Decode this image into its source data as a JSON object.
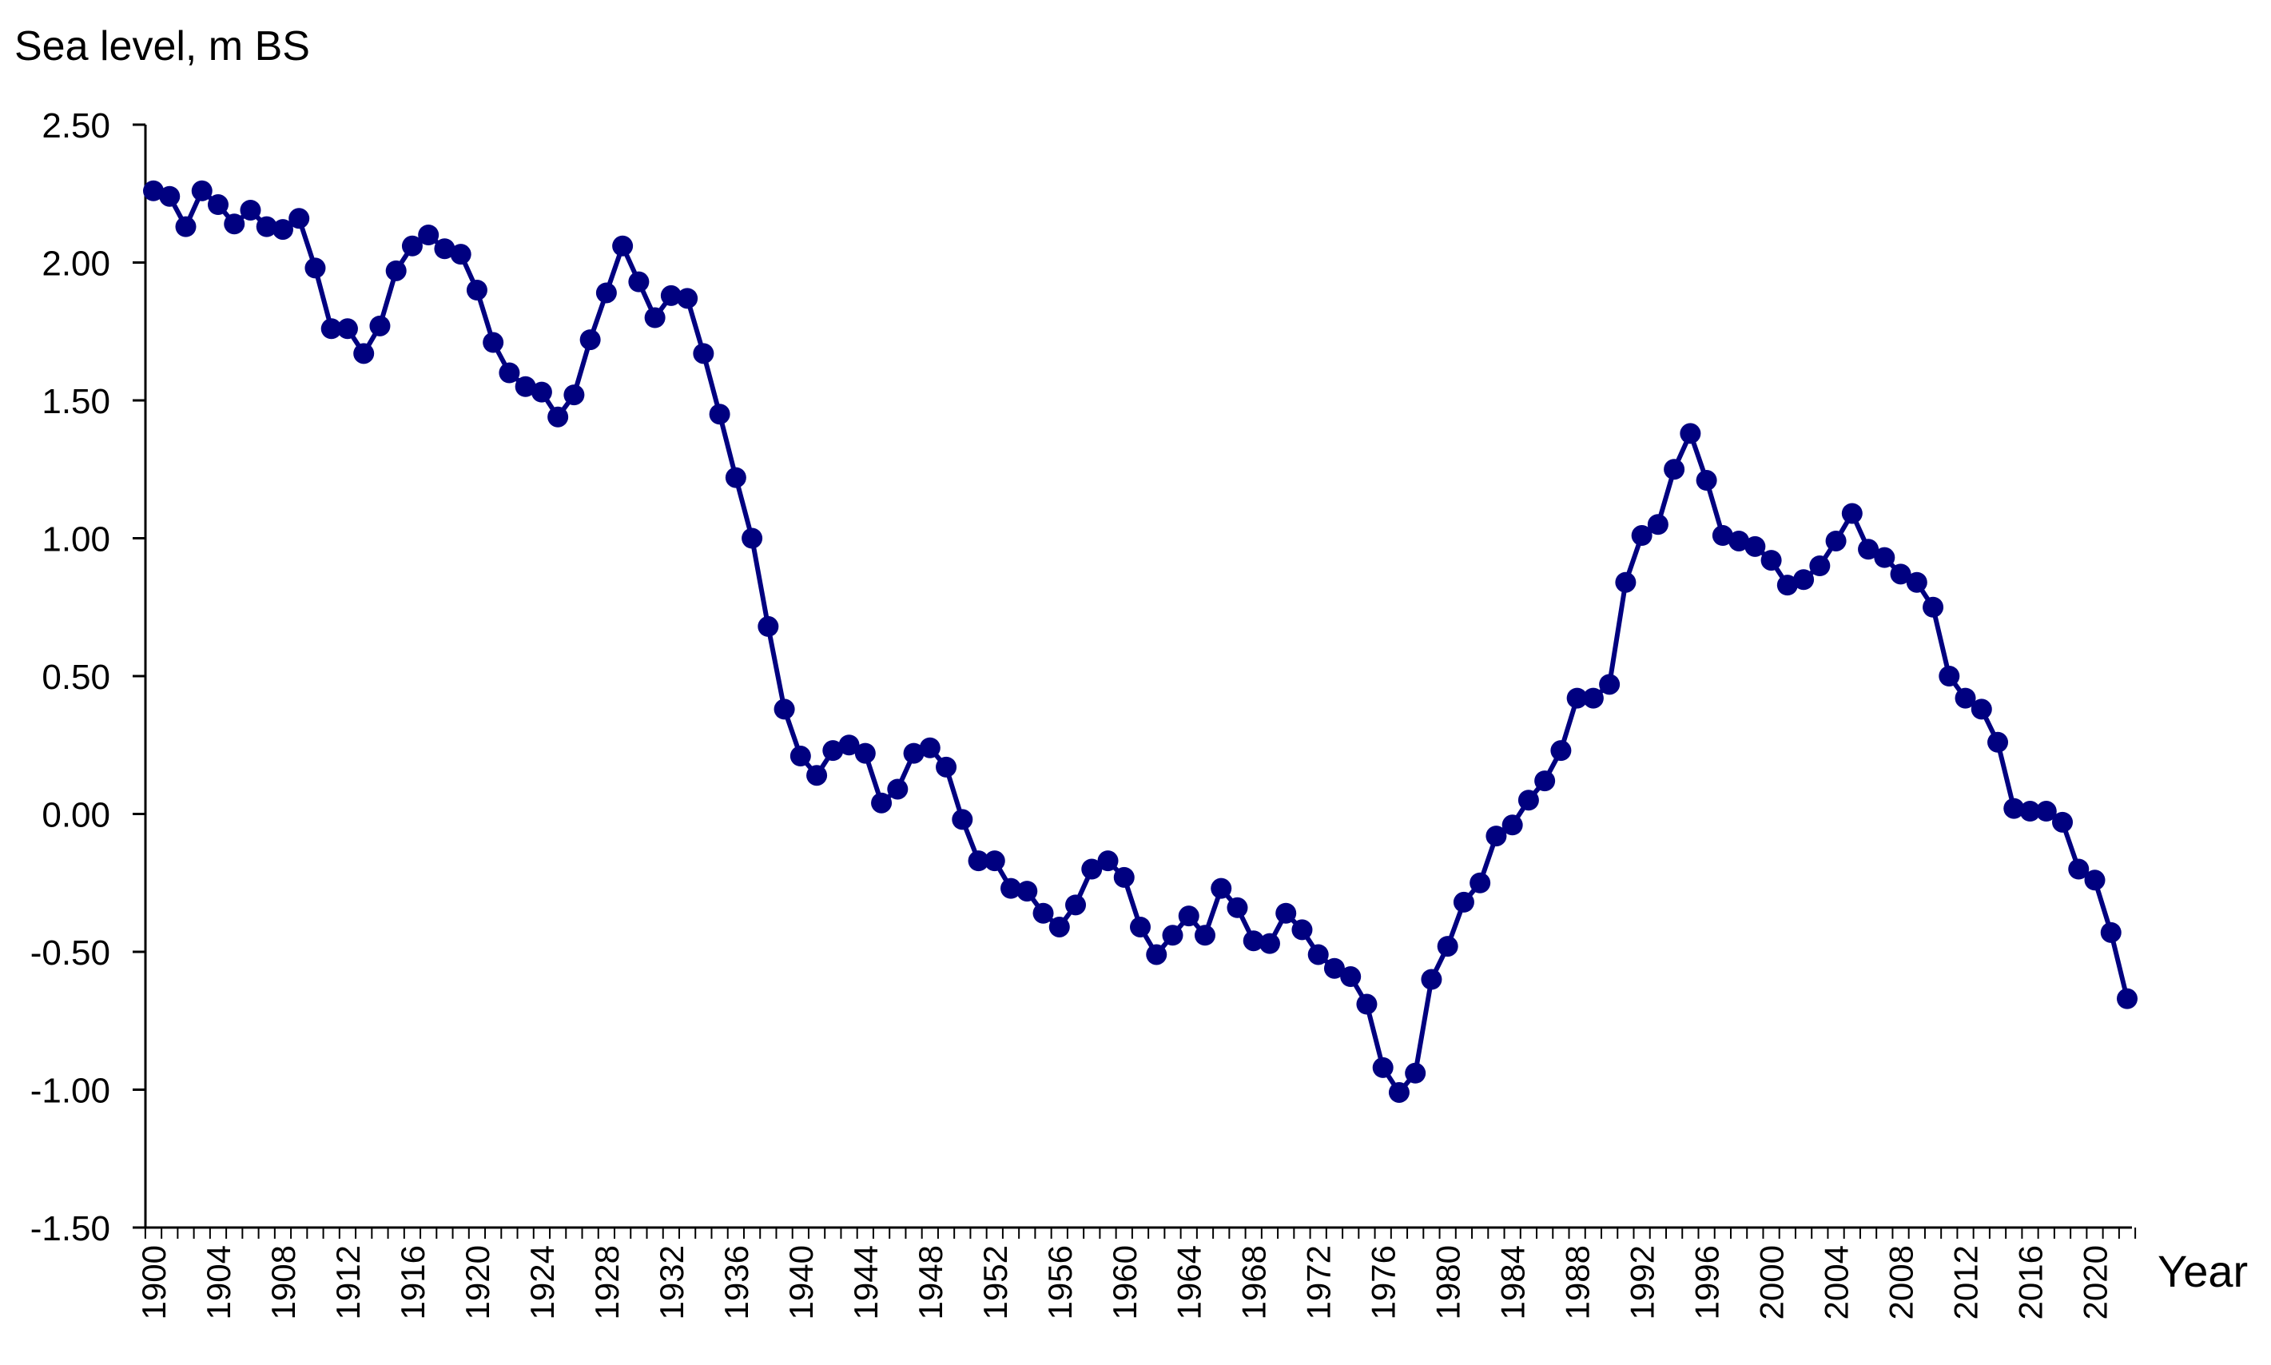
{
  "chart_data": {
    "type": "line",
    "ylabel": "Sea level, m BS",
    "xlabel": "Year",
    "ylim": [
      -1.5,
      2.5
    ],
    "yticks": [
      "2.50",
      "2.00",
      "1.50",
      "1.00",
      "0.50",
      "0.00",
      "-0.50",
      "-1.00",
      "-1.50"
    ],
    "xlim": [
      1900,
      2022
    ],
    "xtick_labels": [
      "1900",
      "1904",
      "1908",
      "1912",
      "1916",
      "1920",
      "1924",
      "1928",
      "1932",
      "1936",
      "1940",
      "1944",
      "1948",
      "1952",
      "1956",
      "1960",
      "1964",
      "1968",
      "1972",
      "1976",
      "1980",
      "1984",
      "1988",
      "1992",
      "1996",
      "2000",
      "2004",
      "2008",
      "2012",
      "2016",
      "2020"
    ],
    "grid": false,
    "line_color": "#000080",
    "series": [
      {
        "x": [
          1900,
          1901,
          1902,
          1903,
          1904,
          1905,
          1906,
          1907,
          1908,
          1909,
          1910,
          1911,
          1912,
          1913,
          1914,
          1915,
          1916,
          1917,
          1918,
          1919,
          1920,
          1921,
          1922,
          1923,
          1924,
          1925,
          1926,
          1927,
          1928,
          1929,
          1930,
          1931,
          1932,
          1933,
          1934,
          1935,
          1936,
          1937,
          1938,
          1939,
          1940,
          1941,
          1942,
          1943,
          1944,
          1945,
          1946,
          1947,
          1948,
          1949,
          1950,
          1951,
          1952,
          1953,
          1954,
          1955,
          1956,
          1957,
          1958,
          1959,
          1960,
          1961,
          1962,
          1963,
          1964,
          1965,
          1966,
          1967,
          1968,
          1969,
          1970,
          1971,
          1972,
          1973,
          1974,
          1975,
          1976,
          1977,
          1978,
          1979,
          1980,
          1981,
          1982,
          1983,
          1984,
          1985,
          1986,
          1987,
          1988,
          1989,
          1990,
          1991,
          1992,
          1993,
          1994,
          1995,
          1996,
          1997,
          1998,
          1999,
          2000,
          2001,
          2002,
          2003,
          2004,
          2005,
          2006,
          2007,
          2008,
          2009,
          2010,
          2011,
          2012,
          2013,
          2014,
          2015,
          2016,
          2017,
          2018,
          2019,
          2020,
          2021,
          2022
        ],
        "values": [
          2.26,
          2.24,
          2.13,
          2.26,
          2.21,
          2.14,
          2.19,
          2.13,
          2.12,
          2.16,
          1.98,
          1.76,
          1.76,
          1.67,
          1.77,
          1.97,
          2.06,
          2.1,
          2.05,
          2.03,
          1.9,
          1.71,
          1.6,
          1.55,
          1.53,
          1.44,
          1.52,
          1.72,
          1.89,
          2.06,
          1.93,
          1.8,
          1.88,
          1.87,
          1.67,
          1.45,
          1.22,
          1.0,
          0.68,
          0.38,
          0.21,
          0.14,
          0.23,
          0.25,
          0.22,
          0.04,
          0.09,
          0.22,
          0.24,
          0.17,
          -0.02,
          -0.17,
          -0.17,
          -0.27,
          -0.28,
          -0.36,
          -0.41,
          -0.33,
          -0.2,
          -0.17,
          -0.23,
          -0.41,
          -0.51,
          -0.44,
          -0.37,
          -0.44,
          -0.27,
          -0.34,
          -0.46,
          -0.47,
          -0.36,
          -0.42,
          -0.51,
          -0.56,
          -0.59,
          -0.69,
          -0.92,
          -1.01,
          -0.94,
          -0.6,
          -0.48,
          -0.32,
          -0.25,
          -0.08,
          -0.04,
          0.05,
          0.12,
          0.23,
          0.42,
          0.42,
          0.47,
          0.84,
          1.01,
          1.05,
          1.25,
          1.38,
          1.21,
          1.01,
          0.99,
          0.97,
          0.92,
          0.83,
          0.85,
          0.9,
          0.99,
          1.09,
          0.96,
          0.93,
          0.87,
          0.84,
          0.75,
          0.5,
          0.42,
          0.38,
          0.26,
          0.02,
          0.01,
          0.01,
          -0.03,
          -0.2,
          -0.24,
          -0.43,
          -0.67
        ]
      }
    ]
  }
}
